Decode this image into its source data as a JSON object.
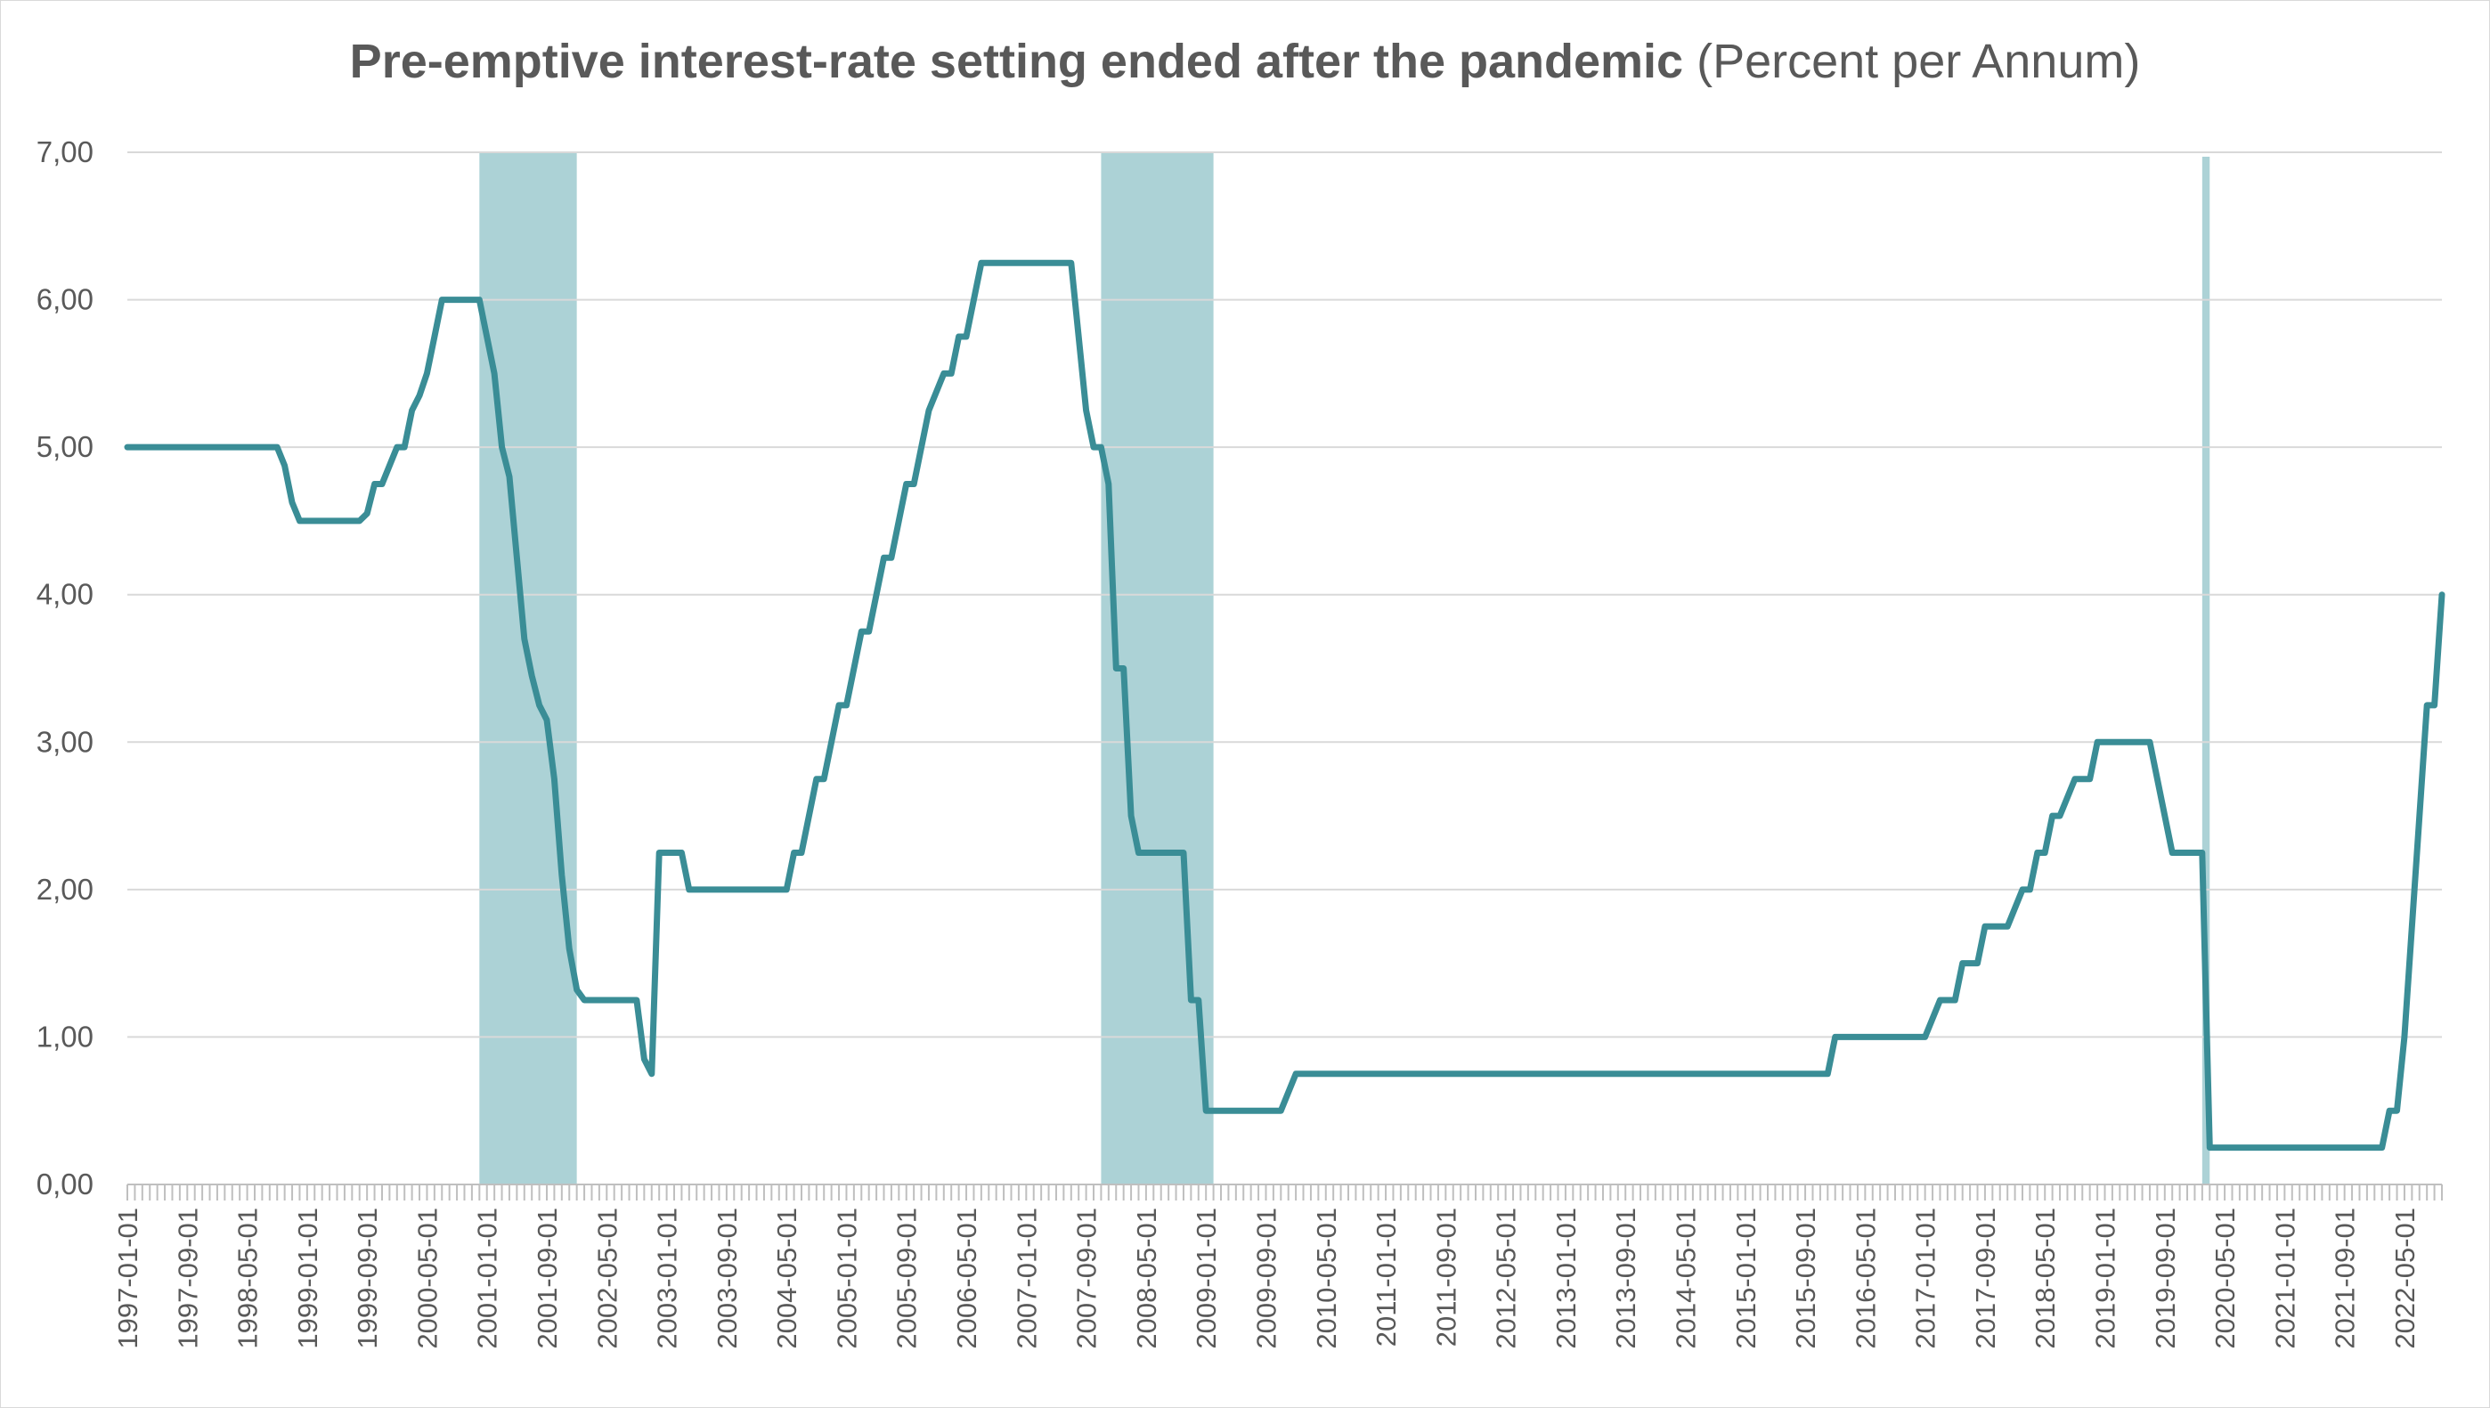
{
  "chart_data": {
    "type": "line",
    "title": "Pre-emptive interest-rate setting ended after the pandemic",
    "subtitle": "(Percent per Annum)",
    "xlabel": "",
    "ylabel": "",
    "ylim": [
      0,
      7
    ],
    "yticks": [
      "0,00",
      "1,00",
      "2,00",
      "3,00",
      "4,00",
      "5,00",
      "6,00",
      "7,00"
    ],
    "grid": true,
    "legend": "none",
    "colors": {
      "line": "#3a8d96",
      "shading": "#acd2d6",
      "grid": "#d9d9d9",
      "axis": "#bfbfbf",
      "text": "#595959"
    },
    "x_range": [
      "1997-01-01",
      "2022-10-01"
    ],
    "xtick_labels": [
      "1997-01-01",
      "1997-09-01",
      "1998-05-01",
      "1999-01-01",
      "1999-09-01",
      "2000-05-01",
      "2001-01-01",
      "2001-09-01",
      "2002-05-01",
      "2003-01-01",
      "2003-09-01",
      "2004-05-01",
      "2005-01-01",
      "2005-09-01",
      "2006-05-01",
      "2007-01-01",
      "2007-09-01",
      "2008-05-01",
      "2009-01-01",
      "2009-09-01",
      "2010-05-01",
      "2011-01-01",
      "2011-09-01",
      "2012-05-01",
      "2013-01-01",
      "2013-09-01",
      "2014-05-01",
      "2015-01-01",
      "2015-09-01",
      "2016-05-01",
      "2017-01-01",
      "2017-09-01",
      "2018-05-01",
      "2019-01-01",
      "2019-09-01",
      "2020-05-01",
      "2021-01-01",
      "2021-09-01",
      "2022-05-01"
    ],
    "shaded_periods": [
      {
        "start": "2000-12-01",
        "end": "2002-01-01",
        "value": 7.0
      },
      {
        "start": "2007-11-01",
        "end": "2009-02-01",
        "value": 7.0
      },
      {
        "start": "2020-02-01",
        "end": "2020-03-01",
        "value": 6.97
      }
    ],
    "series": [
      {
        "points": [
          [
            "1997-01-01",
            5.0
          ],
          [
            "1998-09-01",
            5.0
          ],
          [
            "1998-10-01",
            4.875
          ],
          [
            "1998-11-01",
            4.625
          ],
          [
            "1998-12-01",
            4.5
          ],
          [
            "1999-08-01",
            4.5
          ],
          [
            "1999-09-01",
            4.55
          ],
          [
            "1999-10-01",
            4.75
          ],
          [
            "1999-11-01",
            4.75
          ],
          [
            "2000-01-01",
            5.0
          ],
          [
            "2000-02-01",
            5.0
          ],
          [
            "2000-03-01",
            5.25
          ],
          [
            "2000-04-01",
            5.35
          ],
          [
            "2000-05-01",
            5.5
          ],
          [
            "2000-06-01",
            5.75
          ],
          [
            "2000-07-01",
            6.0
          ],
          [
            "2000-12-01",
            6.0
          ],
          [
            "2001-02-01",
            5.5
          ],
          [
            "2001-03-01",
            5.0
          ],
          [
            "2001-04-01",
            4.8
          ],
          [
            "2001-05-01",
            4.25
          ],
          [
            "2001-06-01",
            3.7
          ],
          [
            "2001-07-01",
            3.45
          ],
          [
            "2001-08-01",
            3.25
          ],
          [
            "2001-09-01",
            3.15
          ],
          [
            "2001-10-01",
            2.75
          ],
          [
            "2001-11-01",
            2.1
          ],
          [
            "2001-12-01",
            1.6
          ],
          [
            "2002-01-01",
            1.32
          ],
          [
            "2002-02-01",
            1.25
          ],
          [
            "2002-09-01",
            1.25
          ],
          [
            "2002-10-01",
            0.85
          ],
          [
            "2002-11-01",
            0.75
          ],
          [
            "2002-12-01",
            2.25
          ],
          [
            "2003-03-01",
            2.25
          ],
          [
            "2003-04-01",
            2.0
          ],
          [
            "2004-05-01",
            2.0
          ],
          [
            "2004-06-01",
            2.25
          ],
          [
            "2004-07-01",
            2.25
          ],
          [
            "2004-09-01",
            2.75
          ],
          [
            "2004-10-01",
            2.75
          ],
          [
            "2004-12-01",
            3.25
          ],
          [
            "2005-01-01",
            3.25
          ],
          [
            "2005-03-01",
            3.75
          ],
          [
            "2005-04-01",
            3.75
          ],
          [
            "2005-06-01",
            4.25
          ],
          [
            "2005-07-01",
            4.25
          ],
          [
            "2005-09-01",
            4.75
          ],
          [
            "2005-10-01",
            4.75
          ],
          [
            "2005-12-01",
            5.25
          ],
          [
            "2006-02-01",
            5.5
          ],
          [
            "2006-03-01",
            5.5
          ],
          [
            "2006-04-01",
            5.75
          ],
          [
            "2006-05-01",
            5.75
          ],
          [
            "2006-07-01",
            6.25
          ],
          [
            "2007-07-01",
            6.25
          ],
          [
            "2007-09-01",
            5.25
          ],
          [
            "2007-10-01",
            5.0
          ],
          [
            "2007-11-01",
            5.0
          ],
          [
            "2007-12-01",
            4.75
          ],
          [
            "2008-01-01",
            3.5
          ],
          [
            "2008-02-01",
            3.5
          ],
          [
            "2008-03-01",
            2.5
          ],
          [
            "2008-04-01",
            2.25
          ],
          [
            "2008-10-01",
            2.25
          ],
          [
            "2008-11-01",
            1.25
          ],
          [
            "2008-12-01",
            1.25
          ],
          [
            "2009-01-01",
            0.5
          ],
          [
            "2009-11-01",
            0.5
          ],
          [
            "2010-01-01",
            0.75
          ],
          [
            "2015-12-01",
            0.75
          ],
          [
            "2016-01-01",
            1.0
          ],
          [
            "2017-01-01",
            1.0
          ],
          [
            "2017-03-01",
            1.25
          ],
          [
            "2017-05-01",
            1.25
          ],
          [
            "2017-06-01",
            1.5
          ],
          [
            "2017-08-01",
            1.5
          ],
          [
            "2017-09-01",
            1.75
          ],
          [
            "2017-12-01",
            1.75
          ],
          [
            "2018-02-01",
            2.0
          ],
          [
            "2018-03-01",
            2.0
          ],
          [
            "2018-04-01",
            2.25
          ],
          [
            "2018-05-01",
            2.25
          ],
          [
            "2018-06-01",
            2.5
          ],
          [
            "2018-07-01",
            2.5
          ],
          [
            "2018-09-01",
            2.75
          ],
          [
            "2018-11-01",
            2.75
          ],
          [
            "2018-12-01",
            3.0
          ],
          [
            "2019-07-01",
            3.0
          ],
          [
            "2019-08-01",
            2.75
          ],
          [
            "2019-10-01",
            2.25
          ],
          [
            "2020-02-01",
            2.25
          ],
          [
            "2020-03-01",
            0.25
          ],
          [
            "2022-02-01",
            0.25
          ],
          [
            "2022-03-01",
            0.5
          ],
          [
            "2022-04-01",
            0.5
          ],
          [
            "2022-05-01",
            1.0
          ],
          [
            "2022-07-01",
            2.5
          ],
          [
            "2022-08-01",
            3.25
          ],
          [
            "2022-09-01",
            3.25
          ],
          [
            "2022-10-01",
            4.0
          ]
        ]
      }
    ]
  }
}
